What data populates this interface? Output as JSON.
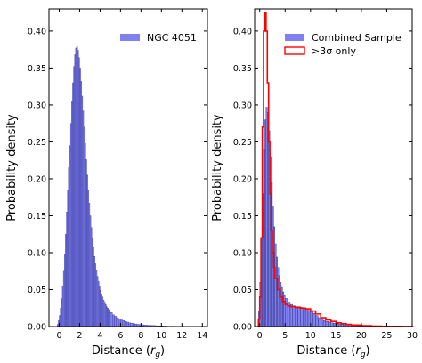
{
  "chart_data": [
    {
      "type": "histogram",
      "xlabel": "Distance (r_g)",
      "ylabel": "Probability density",
      "xlim": [
        -1,
        14.5
      ],
      "ylim": [
        0,
        0.43
      ],
      "xticks": [
        0,
        2,
        4,
        6,
        8,
        10,
        12,
        14
      ],
      "yticks": [
        0.0,
        0.05,
        0.1,
        0.15,
        0.2,
        0.25,
        0.3,
        0.35,
        0.4
      ],
      "grid": false,
      "legend_position": "top-right",
      "series": [
        {
          "name": "NGC 4051",
          "color": "#8080f0",
          "edge_color": "#2a2a8a",
          "bin_width": 0.1,
          "x": [
            -0.2,
            -0.1,
            0.0,
            0.1,
            0.2,
            0.3,
            0.4,
            0.5,
            0.6,
            0.7,
            0.8,
            0.9,
            1.0,
            1.1,
            1.2,
            1.3,
            1.4,
            1.5,
            1.6,
            1.7,
            1.8,
            1.9,
            2.0,
            2.1,
            2.2,
            2.3,
            2.4,
            2.5,
            2.6,
            2.7,
            2.8,
            2.9,
            3.0,
            3.1,
            3.2,
            3.3,
            3.4,
            3.5,
            3.6,
            3.7,
            3.8,
            3.9,
            4.0,
            4.1,
            4.2,
            4.3,
            4.4,
            4.5,
            4.6,
            4.7,
            4.8,
            4.9,
            5.0,
            5.2,
            5.4,
            5.6,
            5.8,
            6.0,
            6.2,
            6.4,
            6.6,
            6.8,
            7.0,
            7.2,
            7.4,
            7.6,
            7.8,
            8.0,
            8.3,
            8.6,
            9.0,
            9.4,
            9.8,
            10.2,
            10.8,
            11.5,
            12.5,
            13.5
          ],
          "y": [
            0.003,
            0.008,
            0.015,
            0.025,
            0.038,
            0.055,
            0.075,
            0.098,
            0.125,
            0.155,
            0.185,
            0.215,
            0.245,
            0.275,
            0.305,
            0.33,
            0.352,
            0.368,
            0.377,
            0.379,
            0.374,
            0.364,
            0.35,
            0.332,
            0.312,
            0.292,
            0.27,
            0.248,
            0.226,
            0.205,
            0.185,
            0.167,
            0.15,
            0.134,
            0.12,
            0.107,
            0.095,
            0.085,
            0.076,
            0.068,
            0.061,
            0.055,
            0.049,
            0.044,
            0.04,
            0.036,
            0.033,
            0.03,
            0.027,
            0.025,
            0.023,
            0.021,
            0.019,
            0.016,
            0.014,
            0.012,
            0.01,
            0.009,
            0.008,
            0.007,
            0.006,
            0.005,
            0.0045,
            0.004,
            0.0035,
            0.003,
            0.0027,
            0.0024,
            0.002,
            0.0017,
            0.0014,
            0.0011,
            0.0009,
            0.0007,
            0.0005,
            0.0004,
            0.0003,
            0.0002
          ]
        }
      ]
    },
    {
      "type": "histogram",
      "xlabel": "Distance (r_g)",
      "ylabel": "Probability density",
      "xlim": [
        -1,
        30
      ],
      "ylim": [
        0,
        0.43
      ],
      "xticks": [
        0,
        5,
        10,
        15,
        20,
        25,
        30
      ],
      "yticks": [
        0.0,
        0.05,
        0.1,
        0.15,
        0.2,
        0.25,
        0.3,
        0.35,
        0.4
      ],
      "grid": false,
      "legend_position": "top-right",
      "series": [
        {
          "name": "Combined Sample",
          "color": "#8080f0",
          "edge_color": "#1a1a60",
          "bin_width": 0.25,
          "x": [
            -0.25,
            0.0,
            0.25,
            0.5,
            0.75,
            1.0,
            1.25,
            1.5,
            1.75,
            2.0,
            2.25,
            2.5,
            2.75,
            3.0,
            3.25,
            3.5,
            3.75,
            4.0,
            4.25,
            4.5,
            4.75,
            5.0,
            5.5,
            6.0,
            6.5,
            7.0,
            7.5,
            8.0,
            8.5,
            9.0,
            9.5,
            10.0,
            10.5,
            11.0,
            11.5,
            12.0,
            12.5,
            13.0,
            13.5,
            14.0,
            14.5,
            15.0,
            15.5,
            16.0,
            16.5,
            17.0,
            17.5,
            18.0,
            18.5,
            19.0,
            19.5,
            20.0,
            21.0,
            22.0,
            23.0,
            24.0
          ],
          "y": [
            0.02,
            0.06,
            0.12,
            0.18,
            0.24,
            0.28,
            0.297,
            0.29,
            0.265,
            0.23,
            0.195,
            0.162,
            0.135,
            0.112,
            0.094,
            0.08,
            0.069,
            0.06,
            0.053,
            0.047,
            0.042,
            0.038,
            0.033,
            0.03,
            0.028,
            0.027,
            0.027,
            0.026,
            0.025,
            0.024,
            0.022,
            0.02,
            0.018,
            0.015,
            0.012,
            0.01,
            0.008,
            0.007,
            0.006,
            0.005,
            0.0045,
            0.004,
            0.0035,
            0.003,
            0.0025,
            0.002,
            0.0018,
            0.0015,
            0.0013,
            0.0011,
            0.001,
            0.0008,
            0.0006,
            0.0004,
            0.0003,
            0.0002
          ]
        },
        {
          "name": ">3σ only",
          "color": "#ff0000",
          "style": "step",
          "x": [
            -0.5,
            -0.25,
            0.0,
            0.25,
            0.5,
            0.75,
            1.0,
            1.25,
            1.5,
            1.75,
            2.0,
            2.25,
            2.5,
            2.75,
            3.0,
            3.5,
            4.0,
            4.5,
            5.0,
            5.5,
            6.0,
            7.0,
            8.0,
            9.0,
            10.0,
            11.0,
            12.0,
            13.0,
            14.0,
            15.0,
            16.0,
            17.0,
            18.0,
            20.0,
            22.0,
            24.0,
            26.0,
            28.0,
            30.0
          ],
          "y": [
            0.0,
            0.01,
            0.04,
            0.12,
            0.27,
            0.4,
            0.425,
            0.4,
            0.33,
            0.25,
            0.18,
            0.13,
            0.1,
            0.08,
            0.065,
            0.05,
            0.04,
            0.034,
            0.03,
            0.028,
            0.027,
            0.026,
            0.025,
            0.024,
            0.021,
            0.017,
            0.012,
            0.009,
            0.007,
            0.005,
            0.004,
            0.003,
            0.002,
            0.0012,
            0.0006,
            0.0003,
            0.0002,
            0.0001,
            0.0
          ]
        }
      ]
    }
  ]
}
